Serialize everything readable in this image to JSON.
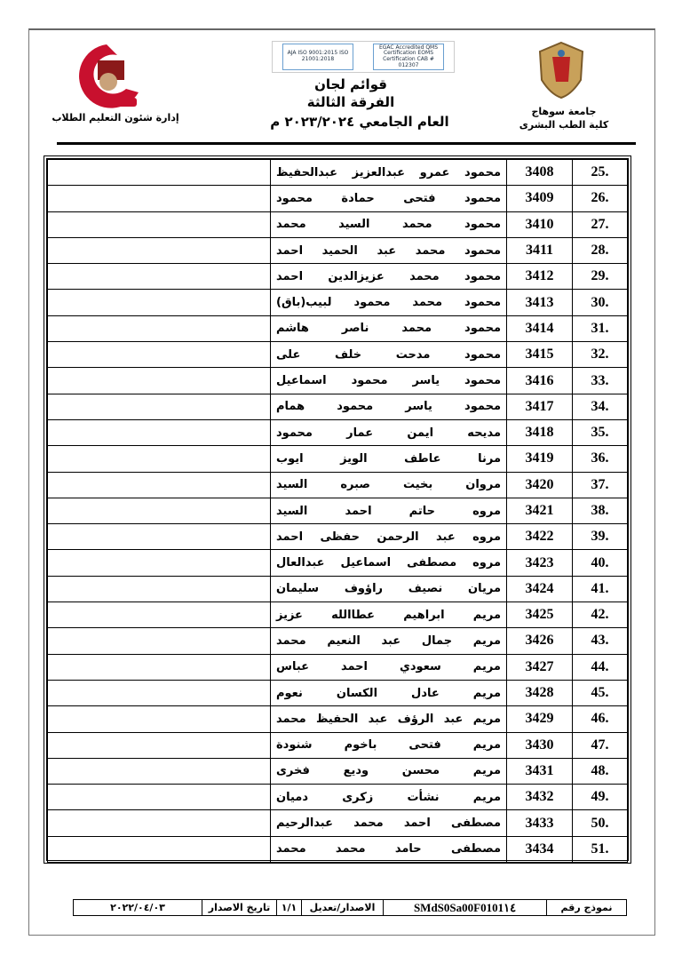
{
  "header": {
    "title": "قوائم لجان",
    "level": "الفرقة الثالثة",
    "year": "العام الجامعي ٢٠٢٣/٢٠٢٤ م",
    "department": "إدارة شئون التعليم الطلاب",
    "university": "جامعة سوهاج",
    "faculty": "كلية الطب البشرى",
    "logo_left_text": "جامعة سوهاج كلية الطب",
    "cert_left": "EGAC Accredited QMS Certification EOMS Certification CAB # 012307",
    "cert_right": "AJA ISO 9001:2015 ISO 21001:2018"
  },
  "rows": [
    {
      "no": "25.",
      "code": "3408",
      "name": "محمود عمرو عبدالعزيز عبدالحفيظ"
    },
    {
      "no": "26.",
      "code": "3409",
      "name": "محمود فتحى حمادة محمود"
    },
    {
      "no": "27.",
      "code": "3410",
      "name": "محمود محمد السيد محمد"
    },
    {
      "no": "28.",
      "code": "3411",
      "name": "محمود محمد عبد الحميد احمد"
    },
    {
      "no": "29.",
      "code": "3412",
      "name": "محمود محمد عزيزالدين احمد"
    },
    {
      "no": "30.",
      "code": "3413",
      "name": "محمود محمد محمود لبيب(باق)"
    },
    {
      "no": "31.",
      "code": "3414",
      "name": "محمود محمد ناصر هاشم"
    },
    {
      "no": "32.",
      "code": "3415",
      "name": "محمود مدحت خلف على"
    },
    {
      "no": "33.",
      "code": "3416",
      "name": "محمود ياسر محمود اسماعيل"
    },
    {
      "no": "34.",
      "code": "3417",
      "name": "محمود ياسر محمود همام"
    },
    {
      "no": "35.",
      "code": "3418",
      "name": "مديحه ايمن عمار محمود"
    },
    {
      "no": "36.",
      "code": "3419",
      "name": "مرنا عاطف الويز ايوب"
    },
    {
      "no": "37.",
      "code": "3420",
      "name": "مروان بخيت صبره السيد"
    },
    {
      "no": "38.",
      "code": "3421",
      "name": "مروه حاتم احمد السيد"
    },
    {
      "no": "39.",
      "code": "3422",
      "name": "مروه عبد الرحمن حفظى احمد"
    },
    {
      "no": "40.",
      "code": "3423",
      "name": "مروه مصطفى اسماعيل عبدالعال"
    },
    {
      "no": "41.",
      "code": "3424",
      "name": "مريان نصيف راؤوف سليمان"
    },
    {
      "no": "42.",
      "code": "3425",
      "name": "مريم ابراهيم عطاالله عزيز"
    },
    {
      "no": "43.",
      "code": "3426",
      "name": "مريم جمال عبد النعيم محمد"
    },
    {
      "no": "44.",
      "code": "3427",
      "name": "مريم سعودي احمد عباس"
    },
    {
      "no": "45.",
      "code": "3428",
      "name": "مريم عادل الكسان نعوم"
    },
    {
      "no": "46.",
      "code": "3429",
      "name": "مريم عبد الرؤف عبد الحفيظ محمد"
    },
    {
      "no": "47.",
      "code": "3430",
      "name": "مريم فتحى باخوم شنودة"
    },
    {
      "no": "48.",
      "code": "3431",
      "name": "مريم محسن وديع فخرى"
    },
    {
      "no": "49.",
      "code": "3432",
      "name": "مريم نشأت زكرى دميان"
    },
    {
      "no": "50.",
      "code": "3433",
      "name": "مصطفى احمد محمد عبدالرحيم"
    },
    {
      "no": "51.",
      "code": "3434",
      "name": "مصطفى حامد محمد محمد"
    }
  ],
  "footer": {
    "form_label": "نموذج رقم",
    "form_value": "SMdS0Sa00F0101١٤",
    "edition_label": "الاصدار/تعديل",
    "edition_value": "١/١",
    "date_label": "تاريخ الاصدار",
    "date_value": "٢٠٢٢/٠٤/٠٣"
  }
}
